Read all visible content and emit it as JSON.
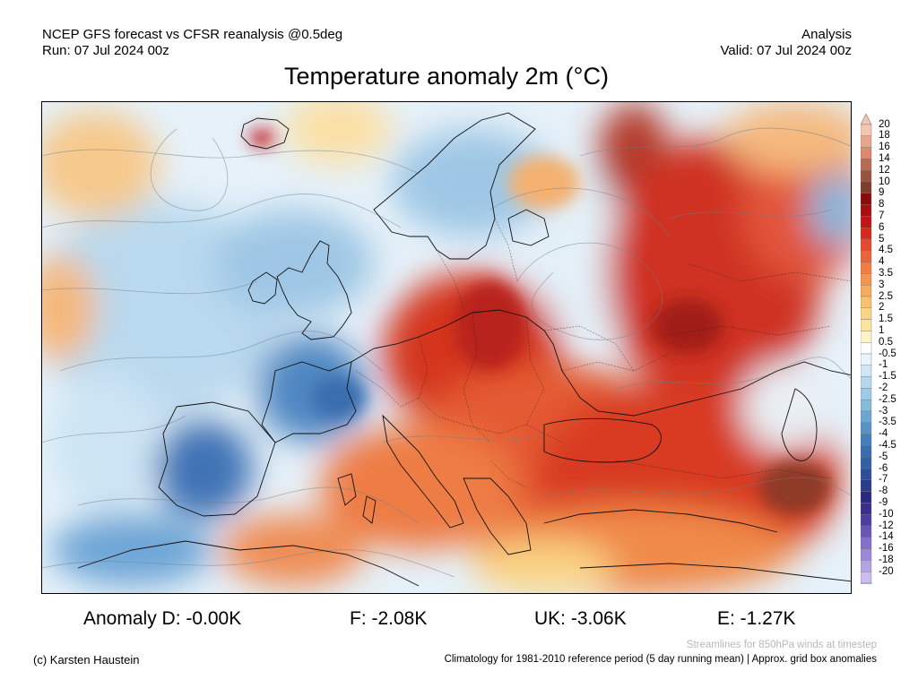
{
  "header": {
    "model_line": "NCEP GFS forecast vs CFSR reanalysis @0.5deg",
    "run_line": "Run: 07 Jul 2024 00z",
    "type_line": "Analysis",
    "valid_line": "Valid: 07 Jul 2024 00z"
  },
  "title": "Temperature anomaly 2m (°C)",
  "colorbar": {
    "ticks": [
      "20",
      "18",
      "16",
      "14",
      "12",
      "10",
      "9",
      "8",
      "7",
      "6",
      "5",
      "4.5",
      "4",
      "3.5",
      "3",
      "2.5",
      "2",
      "1.5",
      "1",
      "0.5",
      "-0.5",
      "-1",
      "-1.5",
      "-2",
      "-2.5",
      "-3",
      "-3.5",
      "-4",
      "-4.5",
      "-5",
      "-6",
      "-7",
      "-8",
      "-9",
      "-10",
      "-12",
      "-14",
      "-16",
      "-18",
      "-20"
    ],
    "colors": [
      "#f4c6b2",
      "#e8a58d",
      "#d98a6f",
      "#b86c53",
      "#9b5340",
      "#7d3c2c",
      "#8b0a0a",
      "#a80f0f",
      "#c01515",
      "#d42a1d",
      "#e34a2e",
      "#ea6438",
      "#ef7d44",
      "#f3954f",
      "#f6ab5d",
      "#f8c170",
      "#fad486",
      "#fbe3a0",
      "#fdf3c8",
      "#ffffff",
      "#eaf4fb",
      "#cfe6f5",
      "#b6d8ee",
      "#9fcbe6",
      "#86bbdc",
      "#6ba8d1",
      "#5594c5",
      "#4380b9",
      "#3a6daf",
      "#3260a6",
      "#2d4e9a",
      "#2a3d8c",
      "#2b2a80",
      "#3a2d8c",
      "#4e3da0",
      "#6a55b7",
      "#8470c8",
      "#9c89d6",
      "#b4a3e2",
      "#cbbdee"
    ]
  },
  "stats": {
    "d": "Anomaly D: -0.00K",
    "f": "F: -2.08K",
    "uk": "UK: -3.06K",
    "e": "E: -1.27K"
  },
  "notes": {
    "streamlines": "Streamlines for 850hPa winds at timestep",
    "climatology": "Climatology for 1981-2010 reference period (5 day running mean) | Approx. grid box anomalies",
    "credit": "(c) Karsten Haustein"
  }
}
